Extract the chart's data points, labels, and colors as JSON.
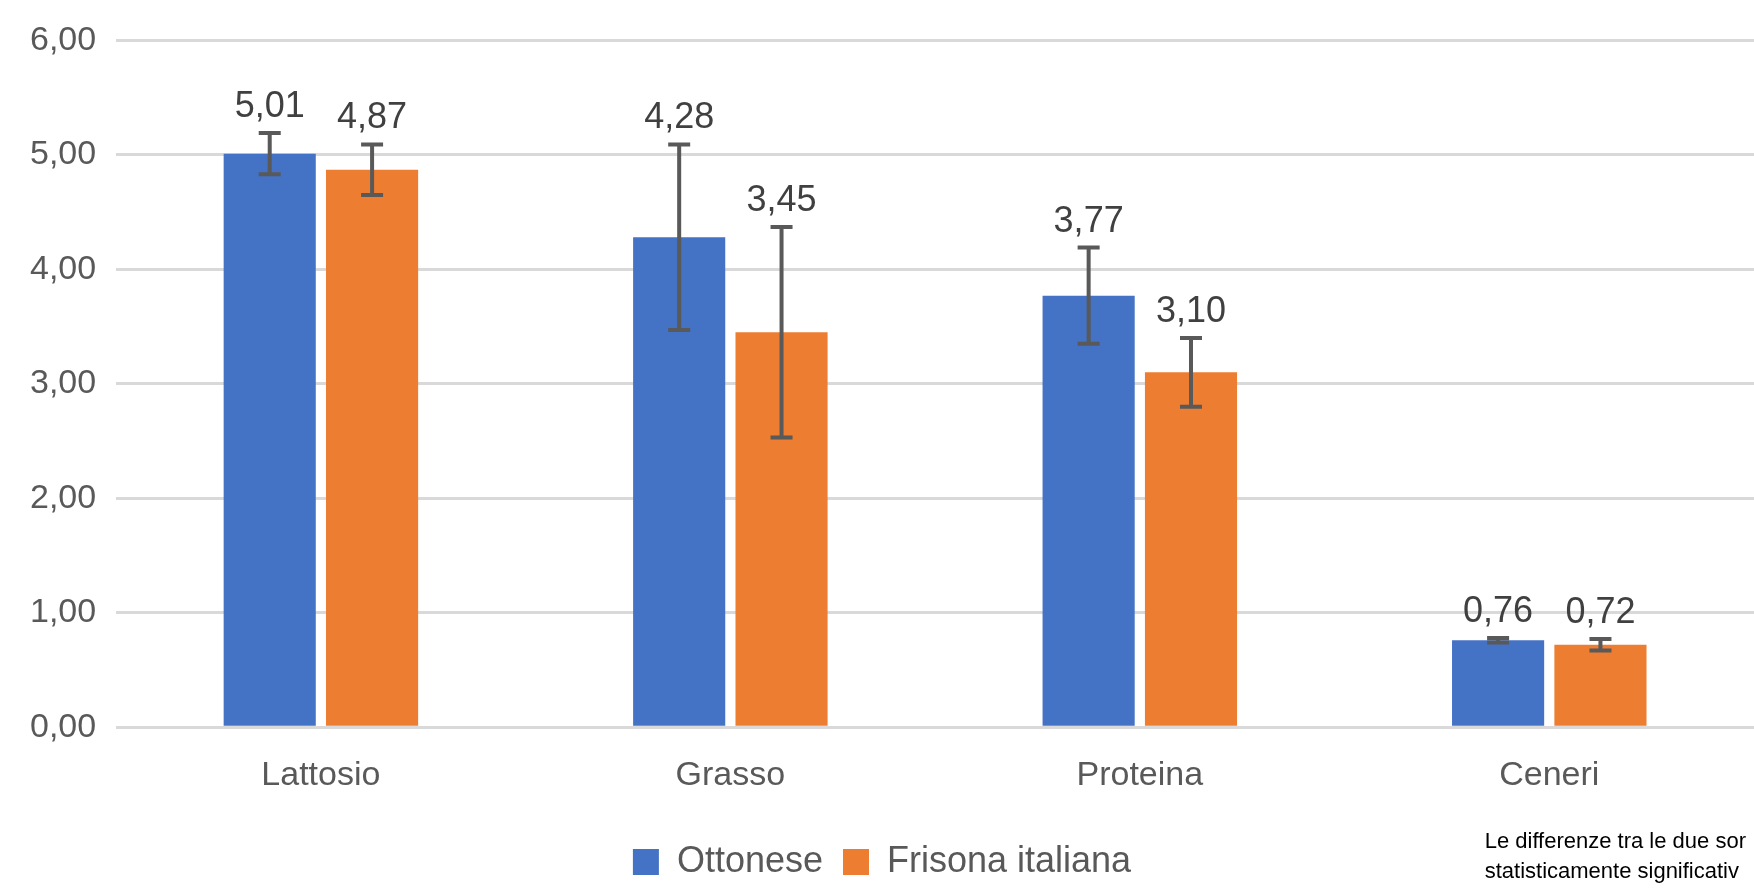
{
  "chart_data": {
    "type": "bar",
    "categories": [
      "Lattosio",
      "Grasso",
      "Proteina",
      "Ceneri"
    ],
    "series": [
      {
        "name": "Ottonese",
        "color": "#4472c4",
        "values": [
          5.01,
          4.28,
          3.77,
          0.76
        ],
        "value_labels": [
          "5,01",
          "4,28",
          "3,77",
          "0,76"
        ],
        "errors": [
          0.18,
          0.81,
          0.42,
          0.02
        ]
      },
      {
        "name": "Frisona italiana",
        "color": "#ed7d31",
        "values": [
          4.87,
          3.45,
          3.1,
          0.72
        ],
        "value_labels": [
          "4,87",
          "3,45",
          "3,10",
          "0,72"
        ],
        "errors": [
          0.22,
          0.92,
          0.3,
          0.05
        ]
      }
    ],
    "ylim": [
      0,
      6
    ],
    "yticks": [
      {
        "value": 0,
        "label": "0,00"
      },
      {
        "value": 1,
        "label": "1,00"
      },
      {
        "value": 2,
        "label": "2,00"
      },
      {
        "value": 3,
        "label": "3,00"
      },
      {
        "value": 4,
        "label": "4,00"
      },
      {
        "value": 5,
        "label": "5,00"
      },
      {
        "value": 6,
        "label": "6,00"
      }
    ],
    "grid": "y",
    "legend": "bottom",
    "annotations": [
      "Le differenze tra le due sor",
      "statisticamente significativ"
    ]
  }
}
